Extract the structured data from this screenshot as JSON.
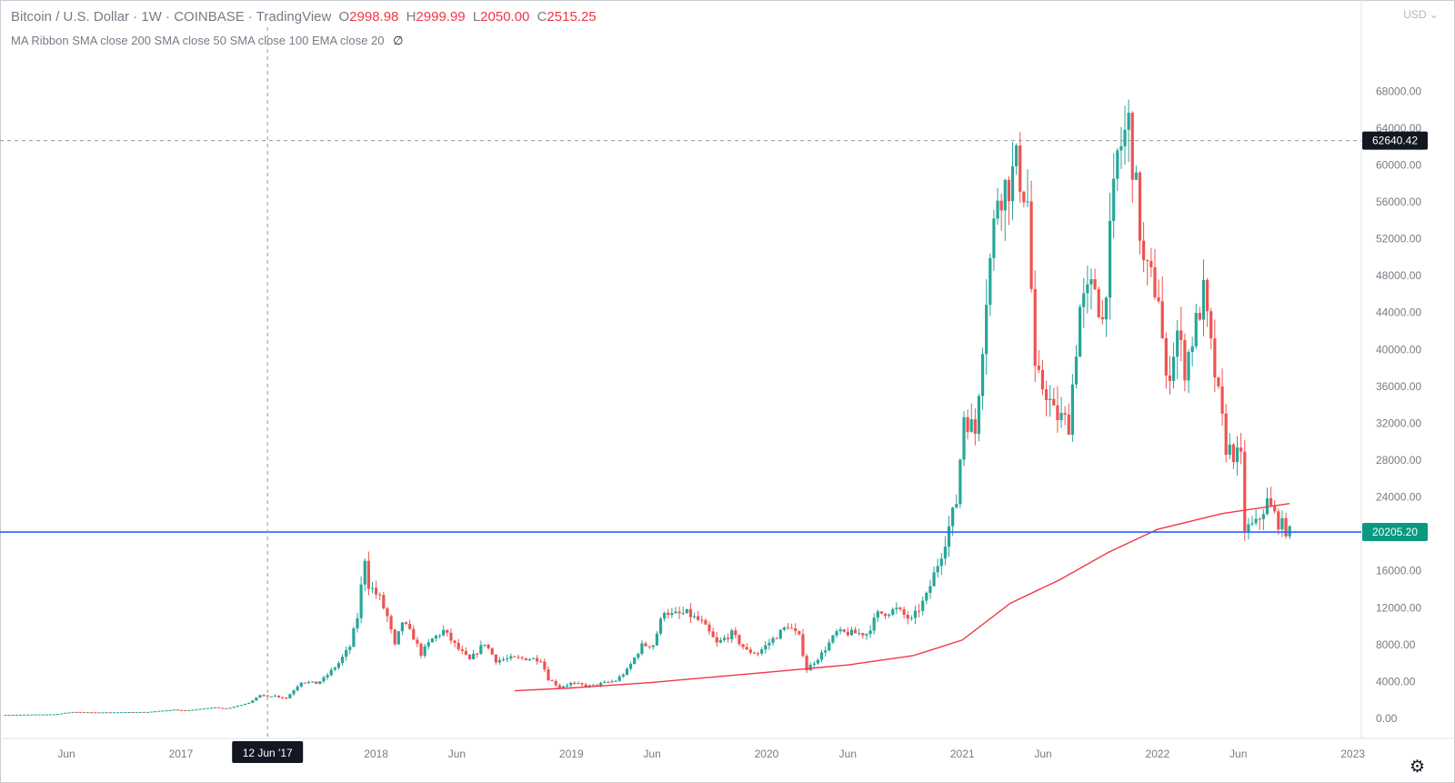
{
  "header": {
    "title": "Bitcoin / U.S. Dollar · 1W · COINBASE · TradingView",
    "ohlc": [
      {
        "key": "O",
        "value": "2998.98"
      },
      {
        "key": "H",
        "value": "2999.99"
      },
      {
        "key": "L",
        "value": "2050.00"
      },
      {
        "key": "C",
        "value": "2515.25"
      }
    ],
    "indicator": "MA Ribbon SMA close 200 SMA close 50 SMA close 100 EMA close 20",
    "indicator_suffix": "∅",
    "currency": "USD ⌄"
  },
  "crosshair": {
    "date_label": "12 Jun '17"
  },
  "price_labels": {
    "crosshair": "62640.42",
    "horizontal_line": "20205.20"
  },
  "icons": {
    "settings": "gear-icon"
  },
  "colors": {
    "up": "#26a69a",
    "down": "#ef5350",
    "ma": "#f23645",
    "hline": "#2962ff",
    "crosshair_label": "#131722",
    "hline_label": "#089981"
  },
  "chart_data": {
    "type": "candlestick",
    "title": "Bitcoin / U.S. Dollar · 1W · COINBASE · TradingView",
    "interval": "1W",
    "ylim": [
      0,
      70000
    ],
    "xlim": [
      "2016-02-08",
      "2022-12-31"
    ],
    "y_ticks": [
      "0.00",
      "4000.00",
      "8000.00",
      "12000.00",
      "16000.00",
      "20000.00",
      "24000.00",
      "28000.00",
      "32000.00",
      "36000.00",
      "40000.00",
      "44000.00",
      "48000.00",
      "52000.00",
      "56000.00",
      "60000.00",
      "64000.00",
      "68000.00"
    ],
    "x_ticks": [
      {
        "label": "Jun",
        "date": "2016-06-01"
      },
      {
        "label": "2017",
        "date": "2017-01-01"
      },
      {
        "label": "2018",
        "date": "2018-01-01"
      },
      {
        "label": "Jun",
        "date": "2018-06-01"
      },
      {
        "label": "2019",
        "date": "2019-01-01"
      },
      {
        "label": "Jun",
        "date": "2019-06-01"
      },
      {
        "label": "2020",
        "date": "2020-01-01"
      },
      {
        "label": "Jun",
        "date": "2020-06-01"
      },
      {
        "label": "2021",
        "date": "2021-01-01"
      },
      {
        "label": "Jun",
        "date": "2021-06-01"
      },
      {
        "label": "2022",
        "date": "2022-01-01"
      },
      {
        "label": "Jun",
        "date": "2022-06-01"
      },
      {
        "label": "2023",
        "date": "2023-01-01"
      }
    ],
    "price_anchors": [
      [
        "2016-02-08",
        380
      ],
      [
        "2016-05-09",
        450
      ],
      [
        "2016-06-13",
        700
      ],
      [
        "2016-07-25",
        650
      ],
      [
        "2016-10-31",
        700
      ],
      [
        "2016-12-19",
        950
      ],
      [
        "2017-01-09",
        850
      ],
      [
        "2017-03-06",
        1200
      ],
      [
        "2017-03-27",
        1050
      ],
      [
        "2017-05-08",
        1700
      ],
      [
        "2017-05-29",
        2500
      ],
      [
        "2017-06-26",
        2450
      ],
      [
        "2017-07-17",
        2200
      ],
      [
        "2017-08-14",
        4000
      ],
      [
        "2017-09-11",
        3800
      ],
      [
        "2017-09-25",
        4300
      ],
      [
        "2017-10-23",
        6000
      ],
      [
        "2017-11-13",
        7800
      ],
      [
        "2017-11-27",
        11000
      ],
      [
        "2017-12-11",
        17500
      ],
      [
        "2017-12-18",
        14500
      ],
      [
        "2018-01-08",
        13000
      ],
      [
        "2018-01-22",
        11000
      ],
      [
        "2018-02-05",
        7800
      ],
      [
        "2018-02-19",
        10500
      ],
      [
        "2018-03-12",
        8800
      ],
      [
        "2018-03-26",
        7000
      ],
      [
        "2018-04-16",
        8600
      ],
      [
        "2018-05-07",
        9500
      ],
      [
        "2018-06-04",
        7500
      ],
      [
        "2018-06-25",
        6300
      ],
      [
        "2018-07-23",
        8200
      ],
      [
        "2018-08-13",
        6300
      ],
      [
        "2018-09-10",
        6500
      ],
      [
        "2018-10-15",
        6500
      ],
      [
        "2018-11-05",
        6400
      ],
      [
        "2018-11-19",
        4300
      ],
      [
        "2018-12-10",
        3400
      ],
      [
        "2018-12-31",
        3800
      ],
      [
        "2019-02-04",
        3500
      ],
      [
        "2019-03-25",
        4100
      ],
      [
        "2019-04-15",
        5200
      ],
      [
        "2019-05-13",
        7900
      ],
      [
        "2019-06-03",
        8000
      ],
      [
        "2019-06-24",
        11800
      ],
      [
        "2019-07-08",
        11200
      ],
      [
        "2019-08-05",
        11400
      ],
      [
        "2019-09-02",
        10400
      ],
      [
        "2019-09-30",
        8100
      ],
      [
        "2019-10-28",
        9200
      ],
      [
        "2019-11-25",
        7300
      ],
      [
        "2019-12-16",
        7100
      ],
      [
        "2020-02-10",
        10100
      ],
      [
        "2020-03-02",
        8800
      ],
      [
        "2020-03-16",
        5300
      ],
      [
        "2020-04-13",
        7000
      ],
      [
        "2020-05-11",
        9300
      ],
      [
        "2020-07-06",
        9200
      ],
      [
        "2020-07-27",
        11300
      ],
      [
        "2020-08-31",
        11800
      ],
      [
        "2020-09-28",
        10600
      ],
      [
        "2020-10-26",
        13200
      ],
      [
        "2020-11-23",
        18000
      ],
      [
        "2020-12-21",
        23500
      ],
      [
        "2021-01-04",
        33000
      ],
      [
        "2021-01-25",
        31000
      ],
      [
        "2021-02-15",
        46000
      ],
      [
        "2021-03-08",
        57000
      ],
      [
        "2021-03-29",
        58000
      ],
      [
        "2021-04-12",
        60000
      ],
      [
        "2021-05-03",
        56000
      ],
      [
        "2021-05-17",
        37000
      ],
      [
        "2021-06-07",
        35500
      ],
      [
        "2021-06-21",
        33000
      ],
      [
        "2021-07-19",
        32000
      ],
      [
        "2021-08-09",
        44500
      ],
      [
        "2021-09-06",
        47000
      ],
      [
        "2021-09-20",
        43000
      ],
      [
        "2021-10-18",
        61000
      ],
      [
        "2021-11-08",
        64500
      ],
      [
        "2021-11-22",
        57000
      ],
      [
        "2021-12-06",
        49000
      ],
      [
        "2022-01-03",
        46000
      ],
      [
        "2022-01-17",
        36000
      ],
      [
        "2022-02-07",
        42000
      ],
      [
        "2022-02-21",
        38000
      ],
      [
        "2022-03-28",
        46000
      ],
      [
        "2022-04-11",
        40000
      ],
      [
        "2022-05-09",
        29500
      ],
      [
        "2022-06-06",
        28000
      ],
      [
        "2022-06-13",
        20500
      ],
      [
        "2022-07-04",
        21000
      ],
      [
        "2022-07-25",
        23500
      ],
      [
        "2022-08-15",
        21300
      ],
      [
        "2022-09-05",
        20100
      ]
    ],
    "moving_average": {
      "name": "SMA close 200",
      "points": [
        [
          "2018-09-17",
          3000
        ],
        [
          "2019-01-01",
          3300
        ],
        [
          "2019-06-01",
          3900
        ],
        [
          "2020-01-01",
          5000
        ],
        [
          "2020-06-01",
          5800
        ],
        [
          "2020-10-01",
          6800
        ],
        [
          "2021-01-01",
          8500
        ],
        [
          "2021-04-01",
          12500
        ],
        [
          "2021-07-01",
          15000
        ],
        [
          "2021-10-01",
          18000
        ],
        [
          "2022-01-01",
          20500
        ],
        [
          "2022-05-01",
          22200
        ],
        [
          "2022-09-05",
          23300
        ]
      ]
    },
    "horizontal_line": {
      "value": 20205.2
    },
    "crosshair": {
      "date": "2017-06-12",
      "price": 62640.42
    }
  }
}
